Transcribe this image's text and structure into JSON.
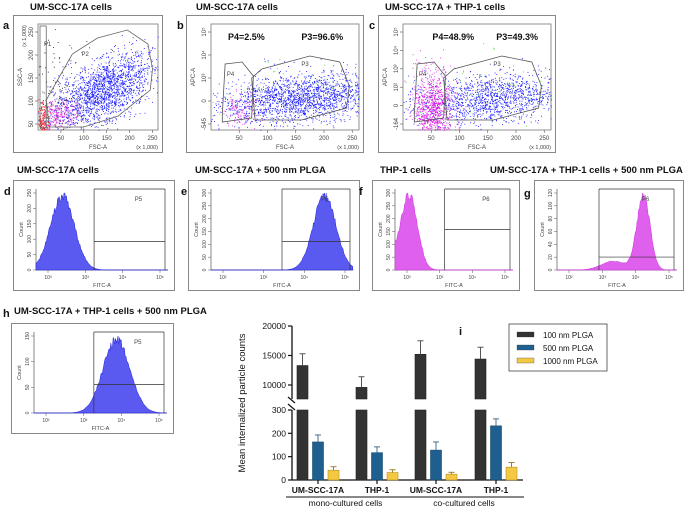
{
  "panels": {
    "a": {
      "letter": "a",
      "title": "UM-SCC-17A cells",
      "xlabel": "FSC-A",
      "ylabel": "SSC-A",
      "xunit": "(x 1,000)",
      "yunit": "(x 1,000)",
      "xticks": [
        "50",
        "100",
        "150",
        "200",
        "250"
      ],
      "yticks": [
        "50",
        "100",
        "150",
        "200",
        "250"
      ],
      "gates": [
        "P1",
        "P2"
      ]
    },
    "b": {
      "letter": "b",
      "title": "UM-SCC-17A cells",
      "xlabel": "FSC-A",
      "ylabel": "APC-A",
      "xunit": "(x 1,000)",
      "xticks": [
        "50",
        "100",
        "150",
        "200",
        "250"
      ],
      "yticks": [
        "-545",
        "0",
        "10³",
        "10⁴",
        "10⁵"
      ],
      "gates": [
        "P4",
        "P3"
      ],
      "stats": [
        "P4=2.5%",
        "P3=96.6%"
      ]
    },
    "c": {
      "letter": "c",
      "title": "UM-SCC-17A + THP-1 cells",
      "xlabel": "FSC-A",
      "ylabel": "APC-A",
      "xunit": "(x 1,000)",
      "xticks": [
        "50",
        "100",
        "150",
        "200",
        "250"
      ],
      "yticks": [
        "-164",
        "0",
        "10²",
        "10³",
        "10⁴",
        "10⁵"
      ],
      "gates": [
        "P4",
        "P3"
      ],
      "stats": [
        "P4=48.9%",
        "P3=49.3%"
      ]
    },
    "d": {
      "letter": "d",
      "title": "UM-SCC-17A cells",
      "xlabel": "FITC-A",
      "ylabel": "Count",
      "gate": "P5",
      "xticks": [
        "10³",
        "10³",
        "10⁴",
        "10⁵"
      ],
      "yticks": [
        "0",
        "50",
        "100",
        "150",
        "200",
        "250"
      ]
    },
    "e": {
      "letter": "e",
      "title": "UM-SCC-17A + 500 nm PLGA",
      "xlabel": "FITC-A",
      "ylabel": "Count",
      "gate": "P5",
      "xticks": [
        "10²",
        "10³",
        "10⁴",
        "10⁵"
      ],
      "yticks": [
        "0",
        "50",
        "100",
        "150",
        "200",
        "250",
        "300"
      ]
    },
    "f": {
      "letter": "f",
      "title": "THP-1 cells",
      "xlabel": "FITC-A",
      "ylabel": "Count",
      "gate": "P6",
      "xticks": [
        "10³",
        "10³",
        "10⁴",
        "10⁵"
      ],
      "yticks": [
        "0",
        "50",
        "100",
        "150",
        "200",
        "250",
        "300"
      ]
    },
    "g": {
      "letter": "g",
      "title": "UM-SCC-17A + THP-1 cells + 500 nm PLGA",
      "xlabel": "FITC-A",
      "ylabel": "Count",
      "gate": "P6",
      "xticks": [
        "10²",
        "10³",
        "10⁴",
        "10⁵"
      ],
      "yticks": [
        "0",
        "20",
        "40",
        "60",
        "80",
        "100",
        "120"
      ]
    },
    "h": {
      "letter": "h",
      "title": "UM-SCC-17A + THP-1 cells + 500 nm PLGA",
      "xlabel": "FITC-A",
      "ylabel": "Count",
      "gate": "P5",
      "xticks": [
        "10²",
        "10³",
        "10⁴",
        "10⁵"
      ],
      "yticks": [
        "0",
        "50",
        "100",
        "150"
      ]
    }
  },
  "colors": {
    "blue_population": "#1a1aff",
    "magenta_population": "#e020e0",
    "red_population": "#ff2020",
    "hist_blue": "#5a5af0",
    "hist_magenta": "#e060ee"
  },
  "chart_data": {
    "type": "bar",
    "panel_letter": "i",
    "ylabel": "Mean internalized particle counts",
    "categories": [
      "UM-SCC-17A",
      "THP-1",
      "UM-SCC-17A",
      "THP-1"
    ],
    "groups": [
      {
        "label": "mono-cultured cells",
        "span": [
          0,
          1
        ]
      },
      {
        "label": "co-cultured cells",
        "span": [
          2,
          3
        ]
      }
    ],
    "y_axis": {
      "broken": true,
      "lower_range": [
        0,
        300
      ],
      "upper_range": [
        8000,
        20000
      ],
      "ticks": [
        0,
        100,
        200,
        300,
        10000,
        15000,
        20000
      ],
      "tick_labels": [
        "0",
        "100",
        "200",
        "300",
        "10000",
        "15000",
        "20000"
      ]
    },
    "legend_position": "top-right",
    "series": [
      {
        "name": "100 nm PLGA",
        "color": "#333333",
        "values": [
          13300,
          9600,
          15200,
          14400
        ],
        "errors": [
          2000,
          1800,
          2300,
          2000
        ]
      },
      {
        "name": "500 nm PLGA",
        "color": "#1f5f8f",
        "values": [
          163,
          117,
          128,
          232
        ],
        "errors": [
          30,
          25,
          35,
          30
        ]
      },
      {
        "name": "1000 nm PLGA",
        "color": "#f5c842",
        "values": [
          42,
          32,
          25,
          55
        ],
        "errors": [
          15,
          12,
          8,
          20
        ]
      }
    ]
  }
}
